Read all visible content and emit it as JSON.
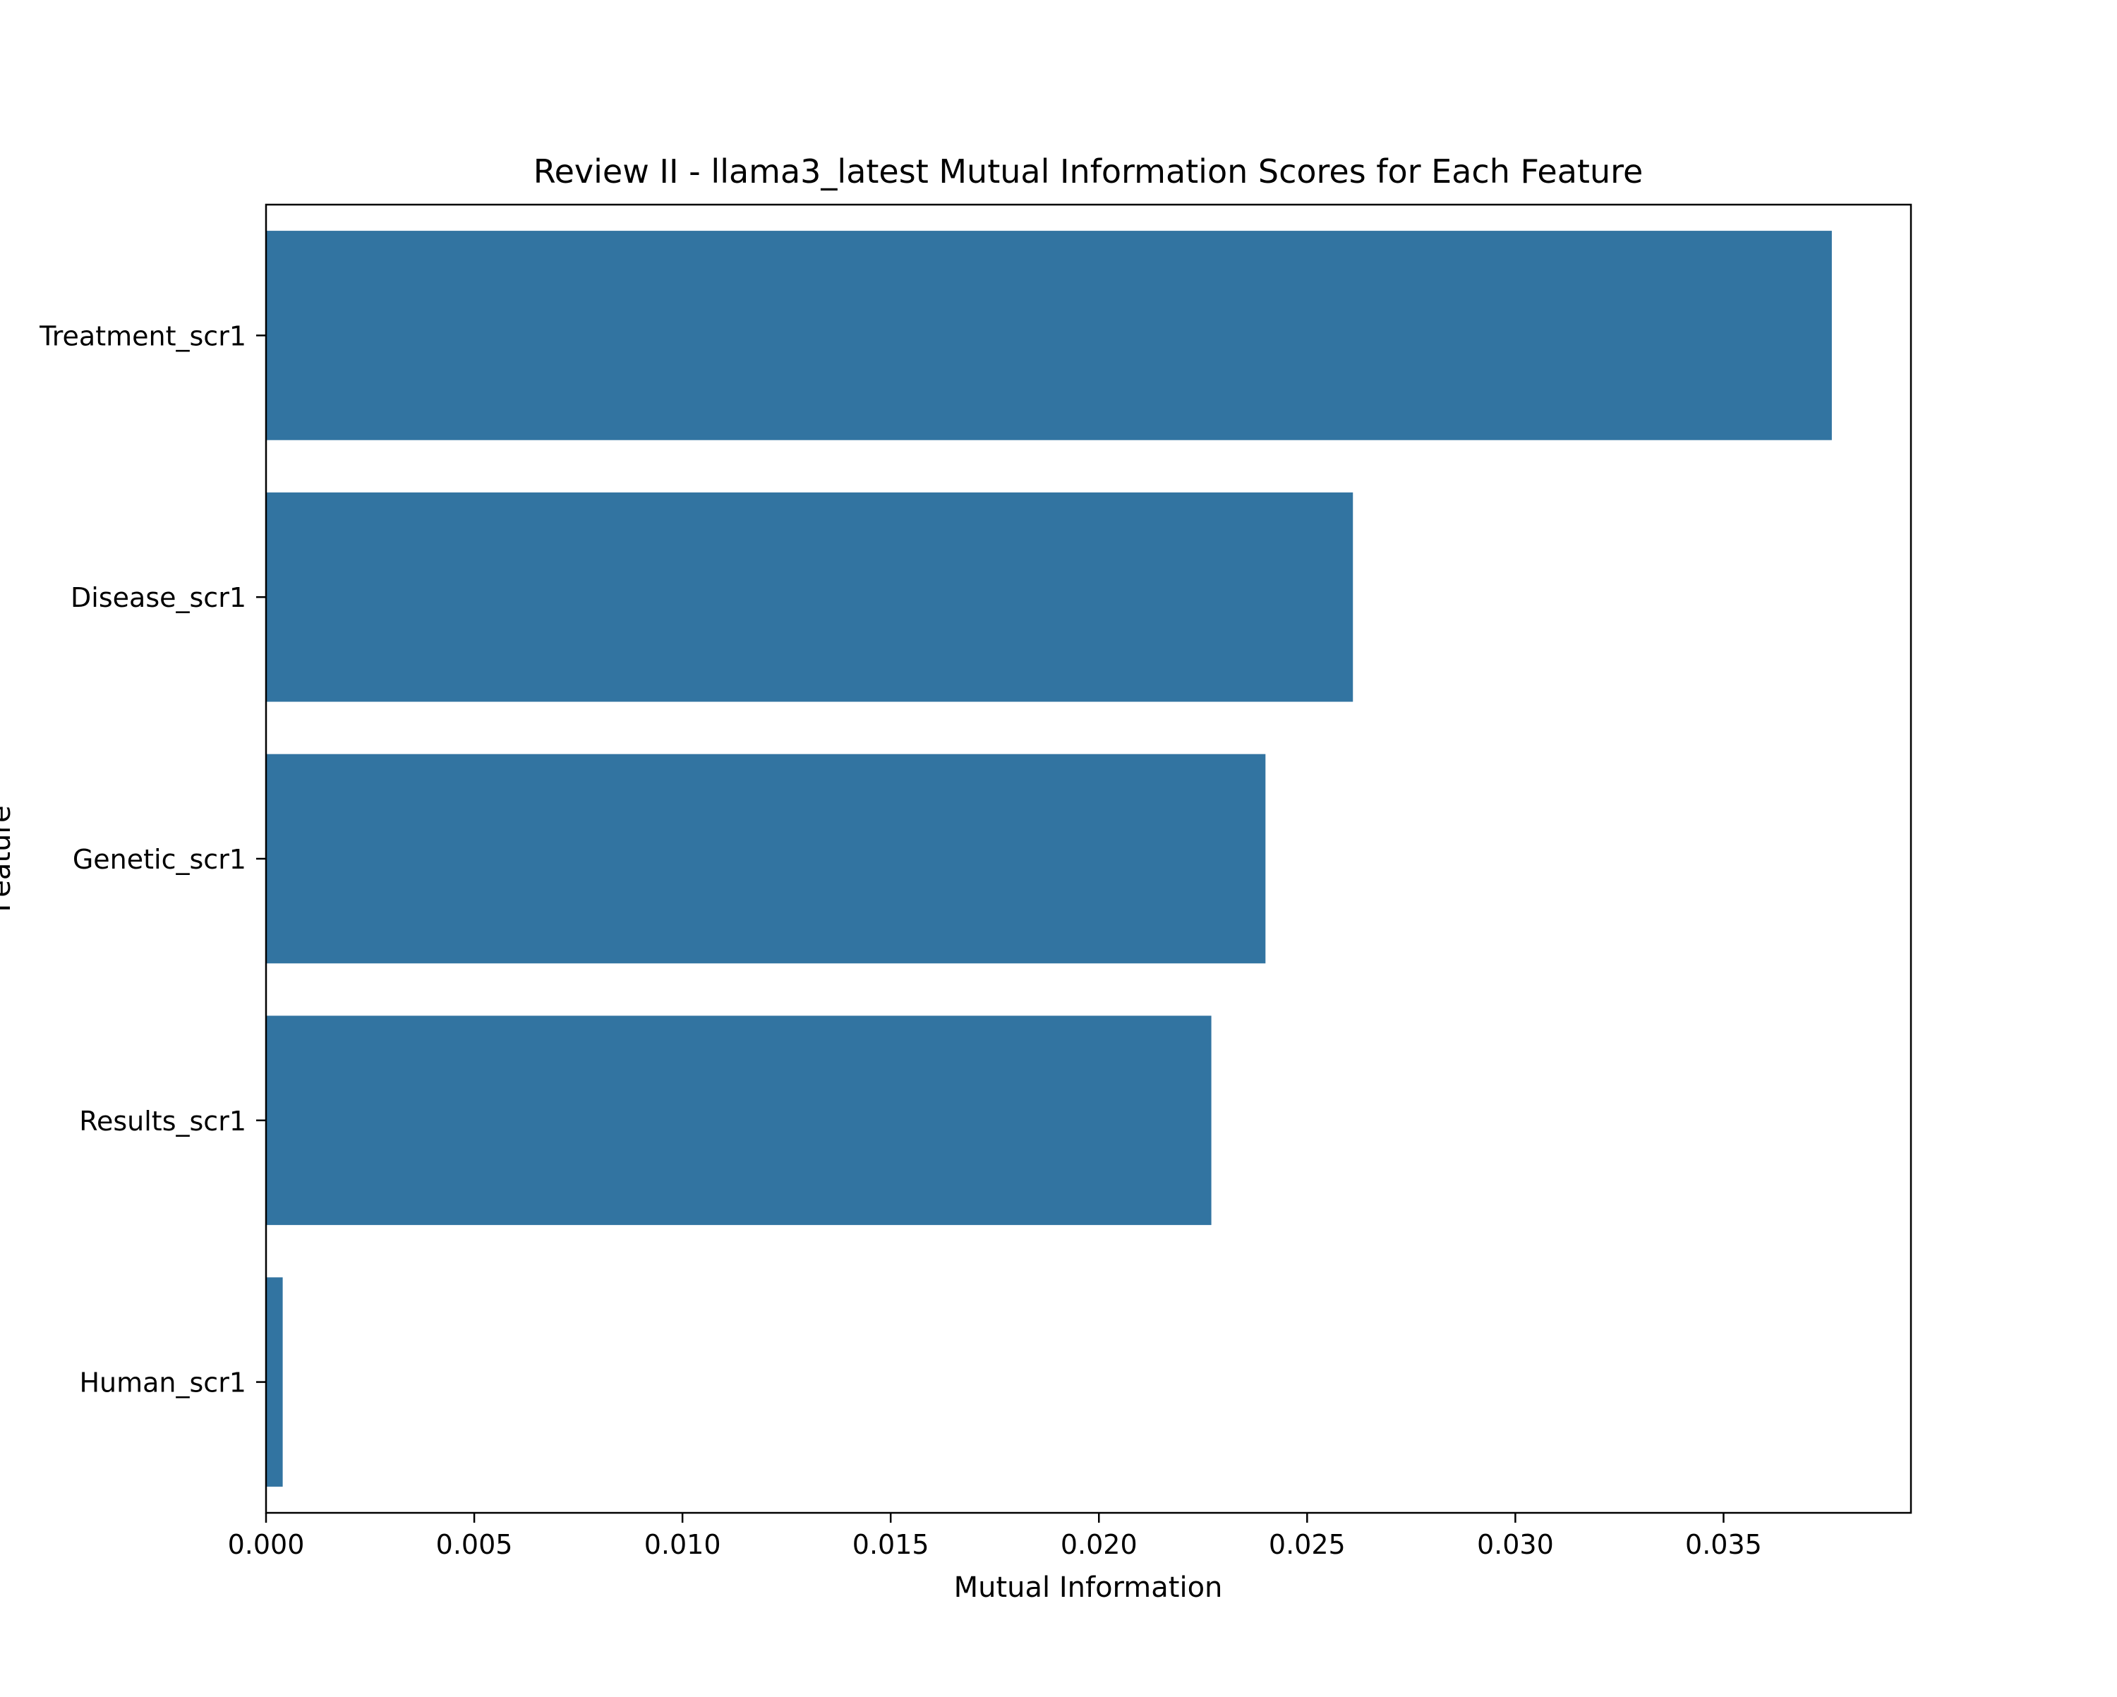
{
  "chart_data": {
    "type": "bar",
    "orientation": "horizontal",
    "title": "Review II - llama3_latest Mutual Information Scores for Each Feature",
    "xlabel": "Mutual Information",
    "ylabel": "Feature",
    "categories": [
      "Treatment_scr1",
      "Disease_scr1",
      "Genetic_scr1",
      "Results_scr1",
      "Human_scr1"
    ],
    "values": [
      0.0376,
      0.0261,
      0.024,
      0.0227,
      0.0004
    ],
    "xlim": [
      0,
      0.0395
    ],
    "xticks": [
      0,
      0.005,
      0.01,
      0.015,
      0.02,
      0.025,
      0.03,
      0.035
    ],
    "xtick_labels": [
      "0.000",
      "0.005",
      "0.010",
      "0.015",
      "0.020",
      "0.025",
      "0.030",
      "0.035"
    ],
    "grid": false,
    "legend": "none",
    "colors": {
      "bar": "#3274a1",
      "axis": "#000000"
    }
  }
}
